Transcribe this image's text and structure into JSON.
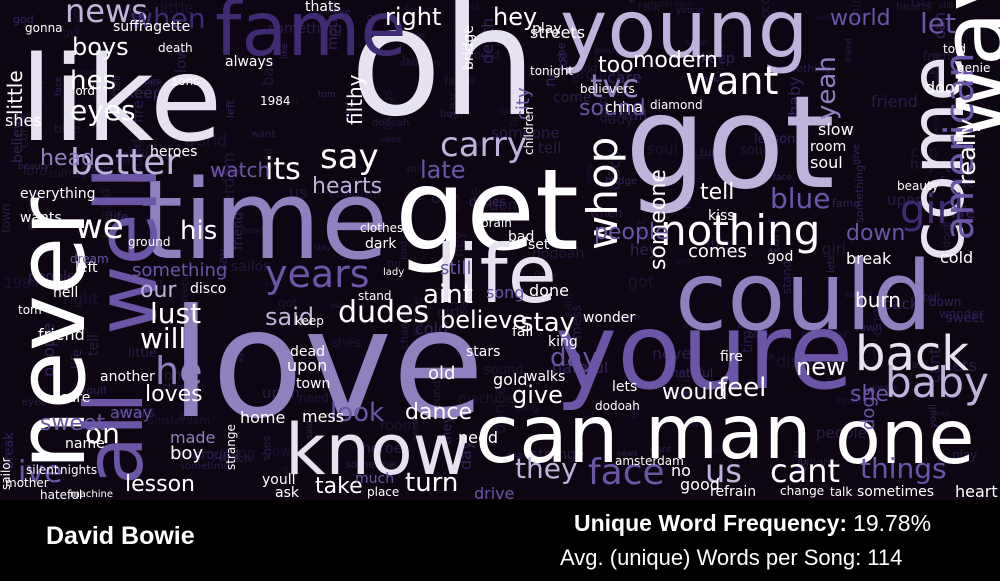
{
  "artist": "David Bowie",
  "stats": {
    "unique_frequency_label": "Unique Word Frequency:",
    "unique_frequency_value": "19.78%",
    "avg_words_label": "Avg. (unique) Words per Song:",
    "avg_words_value": "114"
  },
  "palette": {
    "background": "#0d0612",
    "white": "#ffffff",
    "light": "#e6e2f1",
    "lavender": "#bdb3db",
    "mid": "#8f81c0",
    "purple": "#6a55a6",
    "deep": "#3f2a74",
    "faint": "#2a1c48"
  },
  "words": [
    {
      "text": "oh",
      "color": "light"
    },
    {
      "text": "like",
      "color": "light"
    },
    {
      "text": "love",
      "color": "mid"
    },
    {
      "text": "got",
      "color": "lavender"
    },
    {
      "text": "time",
      "color": "mid"
    },
    {
      "text": "get",
      "color": "white"
    },
    {
      "text": "could",
      "color": "mid"
    },
    {
      "text": "youre",
      "color": "purple"
    },
    {
      "text": "young",
      "color": "lavender"
    },
    {
      "text": "come",
      "color": "light"
    },
    {
      "text": "way",
      "color": "white"
    },
    {
      "text": "never",
      "color": "white"
    },
    {
      "text": "well",
      "color": "purple"
    },
    {
      "text": "all",
      "color": "purple"
    },
    {
      "text": "fame",
      "color": "deep"
    },
    {
      "text": "life",
      "color": "light"
    },
    {
      "text": "can",
      "color": "white"
    },
    {
      "text": "man",
      "color": "white"
    },
    {
      "text": "one",
      "color": "white"
    },
    {
      "text": "know",
      "color": "light"
    },
    {
      "text": "nothing",
      "color": "white"
    },
    {
      "text": "back",
      "color": "light"
    },
    {
      "text": "baby",
      "color": "lavender"
    },
    {
      "text": "want",
      "color": "white"
    },
    {
      "text": "better",
      "color": "lavender"
    },
    {
      "text": "say",
      "color": "white"
    },
    {
      "text": "carry",
      "color": "lavender"
    },
    {
      "text": "whop",
      "color": "white"
    },
    {
      "text": "girl",
      "color": "deep"
    },
    {
      "text": "american",
      "color": "purple"
    },
    {
      "text": "news",
      "color": "lavender"
    },
    {
      "text": "when",
      "color": "deep"
    },
    {
      "text": "boys",
      "color": "white"
    },
    {
      "text": "hes",
      "color": "white"
    },
    {
      "text": "eyes",
      "color": "white"
    },
    {
      "text": "head",
      "color": "mid"
    },
    {
      "text": "we",
      "color": "white"
    },
    {
      "text": "its",
      "color": "white"
    },
    {
      "text": "his",
      "color": "white"
    },
    {
      "text": "years",
      "color": "purple"
    },
    {
      "text": "late",
      "color": "purple"
    },
    {
      "text": "hearts",
      "color": "lavender"
    },
    {
      "text": "dudes",
      "color": "white"
    },
    {
      "text": "said",
      "color": "lavender"
    },
    {
      "text": "our",
      "color": "lavender"
    },
    {
      "text": "lust",
      "color": "white"
    },
    {
      "text": "will",
      "color": "white"
    },
    {
      "text": "he",
      "color": "mid"
    },
    {
      "text": "aint",
      "color": "white"
    },
    {
      "text": "believe",
      "color": "white"
    },
    {
      "text": "stay",
      "color": "white"
    },
    {
      "text": "day",
      "color": "purple"
    },
    {
      "text": "give",
      "color": "white"
    },
    {
      "text": "look",
      "color": "purple"
    },
    {
      "text": "dance",
      "color": "white"
    },
    {
      "text": "loves",
      "color": "white"
    },
    {
      "text": "on",
      "color": "white"
    },
    {
      "text": "ive",
      "color": "purple"
    },
    {
      "text": "sweet",
      "color": "purple"
    },
    {
      "text": "lesson",
      "color": "white"
    },
    {
      "text": "take",
      "color": "white"
    },
    {
      "text": "turn",
      "color": "white"
    },
    {
      "text": "they",
      "color": "lavender"
    },
    {
      "text": "face",
      "color": "purple"
    },
    {
      "text": "us",
      "color": "lavender"
    },
    {
      "text": "cant",
      "color": "white"
    },
    {
      "text": "things",
      "color": "purple"
    },
    {
      "text": "new",
      "color": "white"
    },
    {
      "text": "would",
      "color": "white"
    },
    {
      "text": "feel",
      "color": "white"
    },
    {
      "text": "she",
      "color": "purple"
    },
    {
      "text": "right",
      "color": "white"
    },
    {
      "text": "hey",
      "color": "white"
    },
    {
      "text": "tvc",
      "color": "mid"
    },
    {
      "text": "too",
      "color": "white"
    },
    {
      "text": "modern",
      "color": "white"
    },
    {
      "text": "sound",
      "color": "purple"
    },
    {
      "text": "world",
      "color": "purple"
    },
    {
      "text": "let",
      "color": "purple"
    },
    {
      "text": "yeah",
      "color": "mid"
    },
    {
      "text": "really",
      "color": "white"
    },
    {
      "text": "tell",
      "color": "white"
    },
    {
      "text": "blue",
      "color": "purple"
    },
    {
      "text": "people",
      "color": "purple"
    },
    {
      "text": "someone",
      "color": "white"
    },
    {
      "text": "comes",
      "color": "white"
    },
    {
      "text": "down",
      "color": "purple"
    },
    {
      "text": "break",
      "color": "white"
    },
    {
      "text": "burn",
      "color": "white"
    },
    {
      "text": "slow",
      "color": "white"
    },
    {
      "text": "little",
      "color": "white"
    },
    {
      "text": "shes",
      "color": "white"
    },
    {
      "text": "friend",
      "color": "white"
    },
    {
      "text": "filthy",
      "color": "white"
    },
    {
      "text": "everything",
      "color": "white"
    },
    {
      "text": "streets",
      "color": "white"
    },
    {
      "text": "thats",
      "color": "white"
    },
    {
      "text": "always",
      "color": "white"
    },
    {
      "text": "city",
      "color": "purple"
    },
    {
      "text": "something",
      "color": "purple"
    },
    {
      "text": "mess",
      "color": "white"
    },
    {
      "text": "need",
      "color": "white"
    },
    {
      "text": "still",
      "color": "purple"
    },
    {
      "text": "cold",
      "color": "white"
    },
    {
      "text": "old",
      "color": "white"
    },
    {
      "text": "made",
      "color": "mid"
    },
    {
      "text": "boy",
      "color": "white"
    },
    {
      "text": "home",
      "color": "white"
    },
    {
      "text": "watch",
      "color": "purple"
    },
    {
      "text": "heroes",
      "color": "white"
    },
    {
      "text": "dark",
      "color": "white"
    },
    {
      "text": "disco",
      "color": "white"
    },
    {
      "text": "walks",
      "color": "white"
    },
    {
      "text": "king",
      "color": "white"
    },
    {
      "text": "stars",
      "color": "white"
    },
    {
      "text": "fire",
      "color": "white"
    },
    {
      "text": "door",
      "color": "white"
    },
    {
      "text": "beauty",
      "color": "white"
    },
    {
      "text": "room",
      "color": "white"
    },
    {
      "text": "soul",
      "color": "white"
    },
    {
      "text": "fall",
      "color": "white"
    },
    {
      "text": "stand",
      "color": "white"
    },
    {
      "text": "upon",
      "color": "white"
    },
    {
      "text": "dead",
      "color": "white"
    },
    {
      "text": "town",
      "color": "white"
    },
    {
      "text": "youll",
      "color": "white"
    },
    {
      "text": "ask",
      "color": "white"
    },
    {
      "text": "place",
      "color": "white"
    },
    {
      "text": "much",
      "color": "purple"
    },
    {
      "text": "good",
      "color": "white"
    },
    {
      "text": "no",
      "color": "white"
    },
    {
      "text": "heart",
      "color": "white"
    },
    {
      "text": "sometimes",
      "color": "white"
    },
    {
      "text": "talk",
      "color": "white"
    },
    {
      "text": "change",
      "color": "white"
    },
    {
      "text": "refrain",
      "color": "white"
    },
    {
      "text": "amsterdam",
      "color": "white"
    },
    {
      "text": "mother",
      "color": "white"
    },
    {
      "text": "hateful",
      "color": "white"
    },
    {
      "text": "machine",
      "color": "white"
    },
    {
      "text": "silent",
      "color": "white"
    },
    {
      "text": "nights",
      "color": "white"
    },
    {
      "text": "name",
      "color": "white"
    },
    {
      "text": "another",
      "color": "white"
    },
    {
      "text": "suffragette",
      "color": "white"
    },
    {
      "text": "death",
      "color": "white"
    },
    {
      "text": "lord",
      "color": "white"
    },
    {
      "text": "gonna",
      "color": "white"
    },
    {
      "text": "play",
      "color": "white"
    },
    {
      "text": "tonight",
      "color": "white"
    },
    {
      "text": "china",
      "color": "white"
    },
    {
      "text": "diamond",
      "color": "white"
    },
    {
      "text": "drive",
      "color": "purple"
    },
    {
      "text": "sailor",
      "color": "white"
    },
    {
      "text": "wants",
      "color": "white"
    },
    {
      "text": "left",
      "color": "white"
    },
    {
      "text": "hell",
      "color": "white"
    },
    {
      "text": "tom",
      "color": "white"
    },
    {
      "text": "care",
      "color": "white"
    },
    {
      "text": "away",
      "color": "purple"
    },
    {
      "text": "gold",
      "color": "white"
    },
    {
      "text": "done",
      "color": "white"
    },
    {
      "text": "song",
      "color": "purple"
    },
    {
      "text": "keep",
      "color": "white"
    },
    {
      "text": "wonder",
      "color": "white"
    },
    {
      "text": "lets",
      "color": "white"
    },
    {
      "text": "god",
      "color": "white"
    },
    {
      "text": "dogs",
      "color": "purple"
    },
    {
      "text": "genie",
      "color": "white"
    },
    {
      "text": "told",
      "color": "white"
    },
    {
      "text": "sons",
      "color": "white"
    },
    {
      "text": "dream",
      "color": "purple"
    },
    {
      "text": "1984",
      "color": "white"
    },
    {
      "text": "bridge",
      "color": "white"
    },
    {
      "text": "believers",
      "color": "white"
    },
    {
      "text": "children",
      "color": "white"
    },
    {
      "text": "dodoah",
      "color": "white"
    },
    {
      "text": "strange",
      "color": "white"
    },
    {
      "text": "lady",
      "color": "white"
    },
    {
      "text": "ground",
      "color": "white"
    },
    {
      "text": "kiss",
      "color": "white"
    },
    {
      "text": "clothes",
      "color": "white"
    },
    {
      "text": "brain",
      "color": "white"
    },
    {
      "text": "bad",
      "color": "white"
    },
    {
      "text": "set",
      "color": "white"
    }
  ]
}
